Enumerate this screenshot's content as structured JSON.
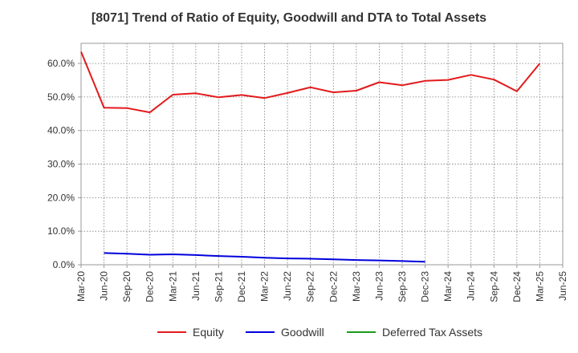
{
  "chart_data": {
    "type": "line",
    "title": "[8071]  Trend of Ratio of Equity, Goodwill and DTA to Total Assets",
    "xlabel": "",
    "ylabel": "",
    "ylim": [
      0,
      66
    ],
    "y_ticks": [
      0,
      10,
      20,
      30,
      40,
      50,
      60
    ],
    "y_tick_labels": [
      "0.0%",
      "10.0%",
      "20.0%",
      "30.0%",
      "40.0%",
      "50.0%",
      "60.0%"
    ],
    "x": [
      "Mar-20",
      "Jun-20",
      "Sep-20",
      "Dec-20",
      "Mar-21",
      "Jun-21",
      "Sep-21",
      "Dec-21",
      "Mar-22",
      "Jun-22",
      "Sep-22",
      "Dec-22",
      "Mar-23",
      "Jun-23",
      "Sep-23",
      "Dec-23",
      "Mar-24",
      "Jun-24",
      "Sep-24",
      "Dec-24",
      "Mar-25",
      "Jun-25"
    ],
    "grid": true,
    "legend_position": "bottom",
    "series": [
      {
        "name": "Equity",
        "color": "#e31a1c",
        "values": [
          63.5,
          46.8,
          46.7,
          45.4,
          50.7,
          51.1,
          49.9,
          50.6,
          49.7,
          51.2,
          52.9,
          51.4,
          51.9,
          54.4,
          53.5,
          54.8,
          55.1,
          56.6,
          55.2,
          51.7,
          60.0,
          null
        ]
      },
      {
        "name": "Goodwill",
        "color": "#0000dd",
        "values": [
          null,
          3.5,
          3.3,
          3.0,
          3.1,
          2.9,
          2.6,
          2.4,
          2.1,
          1.9,
          1.8,
          1.6,
          1.4,
          1.3,
          1.1,
          0.9,
          null,
          null,
          null,
          null,
          null,
          null
        ]
      },
      {
        "name": "Deferred Tax Assets",
        "color": "#1a9a1a",
        "values": [
          null,
          null,
          null,
          null,
          null,
          null,
          null,
          null,
          null,
          null,
          null,
          null,
          null,
          null,
          null,
          null,
          null,
          null,
          null,
          null,
          null,
          null
        ]
      }
    ]
  }
}
